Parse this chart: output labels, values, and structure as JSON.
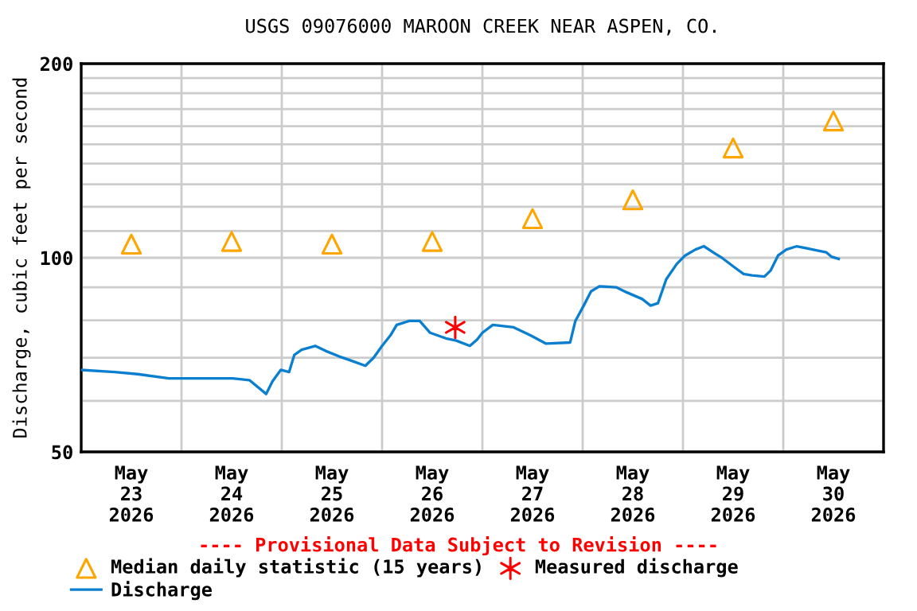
{
  "chart_data": {
    "type": "line",
    "title": "USGS 09076000 MAROON CREEK NEAR ASPEN, CO.",
    "ylabel": "Discharge, cubic feet per second",
    "annotations": [
      "---- Provisional Data Subject to Revision ----"
    ],
    "log": "y",
    "grid": true,
    "legend": "bottom",
    "xlim": [
      "2026-05-23T00:00",
      "2026-05-31T00:00"
    ],
    "xticks": [
      {
        "value": "2026-05-23T00:00",
        "label": null
      },
      {
        "value": "2026-05-23T12:00",
        "label": "May\n23\n2026"
      },
      {
        "value": "2026-05-24T00:00",
        "label": null
      },
      {
        "value": "2026-05-24T12:00",
        "label": "May\n24\n2026"
      },
      {
        "value": "2026-05-25T00:00",
        "label": null
      },
      {
        "value": "2026-05-25T12:00",
        "label": "May\n25\n2026"
      },
      {
        "value": "2026-05-26T00:00",
        "label": null
      },
      {
        "value": "2026-05-26T12:00",
        "label": "May\n26\n2026"
      },
      {
        "value": "2026-05-27T00:00",
        "label": null
      },
      {
        "value": "2026-05-27T12:00",
        "label": "May\n27\n2026"
      },
      {
        "value": "2026-05-28T00:00",
        "label": null
      },
      {
        "value": "2026-05-28T12:00",
        "label": "May\n28\n2026"
      },
      {
        "value": "2026-05-29T00:00",
        "label": null
      },
      {
        "value": "2026-05-29T12:00",
        "label": "May\n29\n2026"
      },
      {
        "value": "2026-05-30T00:00",
        "label": null
      },
      {
        "value": "2026-05-30T12:00",
        "label": "May\n30\n2026"
      },
      {
        "value": "2026-05-31T00:00",
        "label": null
      }
    ],
    "ylim": [
      50,
      200
    ],
    "yticks": [
      50,
      {
        "value": 60,
        "label": null
      },
      {
        "value": 70,
        "label": null
      },
      {
        "value": 80,
        "label": null
      },
      {
        "value": 90,
        "label": null
      },
      100,
      {
        "value": 110,
        "label": null
      },
      {
        "value": 120,
        "label": null
      },
      {
        "value": 130,
        "label": null
      },
      {
        "value": 140,
        "label": null
      },
      {
        "value": 150,
        "label": null
      },
      {
        "value": 160,
        "label": null
      },
      {
        "value": 170,
        "label": null
      },
      {
        "value": 180,
        "label": null
      },
      {
        "value": 190,
        "label": null
      },
      200
    ],
    "series": [
      {
        "name": "Median daily statistic (15 years)",
        "type": "scatter",
        "marker": "triangle",
        "color": "#ffa500",
        "x": [
          "2026-05-23T12:00",
          "2026-05-24T12:00",
          "2026-05-25T12:00",
          "2026-05-26T12:00",
          "2026-05-27T12:00",
          "2026-05-28T12:00",
          "2026-05-29T12:00",
          "2026-05-30T12:00"
        ],
        "values": [
          105,
          106,
          105,
          106,
          115,
          123,
          148,
          163
        ]
      },
      {
        "name": "Discharge",
        "line_style": "solid",
        "color": "#0a7fd0",
        "x": [
          "2026-05-23T00:00",
          "2026-05-23T08:00",
          "2026-05-23T13:30",
          "2026-05-23T21:00",
          "2026-05-24T05:30",
          "2026-05-24T12:15",
          "2026-05-24T16:15",
          "2026-05-24T20:15",
          "2026-05-24T21:45",
          "2026-05-24T23:45",
          "2026-05-25T01:45",
          "2026-05-25T03:00",
          "2026-05-25T04:45",
          "2026-05-25T08:00",
          "2026-05-25T10:30",
          "2026-05-25T13:45",
          "2026-05-25T16:15",
          "2026-05-25T20:00",
          "2026-05-25T22:00",
          "2026-05-26T00:00",
          "2026-05-26T02:00",
          "2026-05-26T03:30",
          "2026-05-26T06:30",
          "2026-05-26T09:00",
          "2026-05-26T11:30",
          "2026-05-26T15:15",
          "2026-05-26T17:45",
          "2026-05-26T21:00",
          "2026-05-26T22:45",
          "2026-05-27T00:00",
          "2026-05-27T02:30",
          "2026-05-27T07:30",
          "2026-05-27T11:30",
          "2026-05-27T15:15",
          "2026-05-27T21:00",
          "2026-05-27T22:15",
          "2026-05-28T00:15",
          "2026-05-28T02:00",
          "2026-05-28T04:00",
          "2026-05-28T08:00",
          "2026-05-28T10:30",
          "2026-05-28T14:15",
          "2026-05-28T16:15",
          "2026-05-28T18:00",
          "2026-05-28T20:00",
          "2026-05-28T22:30",
          "2026-05-29T00:30",
          "2026-05-29T03:00",
          "2026-05-29T05:00",
          "2026-05-29T07:30",
          "2026-05-29T09:30",
          "2026-05-29T12:00",
          "2026-05-29T14:30",
          "2026-05-29T16:30",
          "2026-05-29T19:30",
          "2026-05-29T21:00",
          "2026-05-29T22:45",
          "2026-05-30T00:45",
          "2026-05-30T03:15",
          "2026-05-30T07:00",
          "2026-05-30T10:15",
          "2026-05-30T11:30",
          "2026-05-30T13:15"
        ],
        "values": [
          67,
          66.5,
          66,
          65,
          65,
          65,
          64.6,
          61.5,
          64.3,
          67,
          66.5,
          70.7,
          72,
          73,
          71.7,
          70.3,
          69.4,
          68,
          70,
          73,
          75.8,
          78.7,
          79.8,
          79.8,
          76.5,
          75,
          74.4,
          73,
          74.7,
          76.5,
          78.7,
          78,
          75.8,
          73.6,
          73.9,
          79.8,
          84.3,
          88.7,
          90.3,
          90,
          88.4,
          86.3,
          84.3,
          85,
          92.6,
          97.8,
          100.8,
          103,
          104.2,
          101.7,
          99.8,
          97,
          94.4,
          93.9,
          93.5,
          95.6,
          100.8,
          103,
          104.2,
          103,
          102,
          100.4,
          99.6
        ]
      },
      {
        "name": "Measured discharge",
        "type": "scatter",
        "marker": "cross",
        "color": "#ff0000",
        "x": [
          "2026-05-26T17:30"
        ],
        "values": [
          78
        ]
      }
    ]
  }
}
